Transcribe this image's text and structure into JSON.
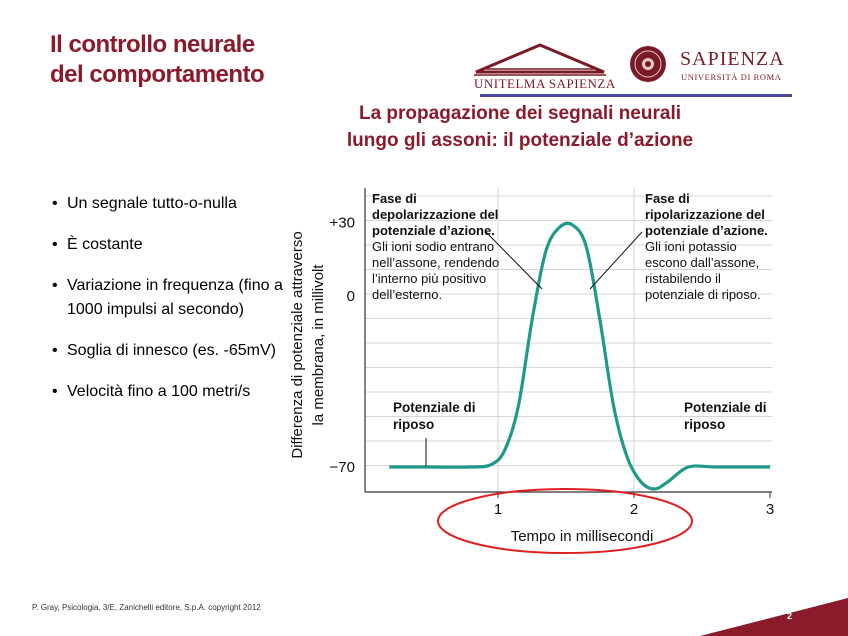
{
  "header": {
    "title_line1": "Il controllo neurale",
    "title_line2": "del comportamento",
    "logo_unitelma": "UNITELMA SAPIENZA",
    "logo_sapienza": "SAPIENZA",
    "logo_sapienza_sub": "UNIVERSITÀ DI ROMA"
  },
  "subtitle": {
    "line1": "La propagazione dei segnali neurali",
    "line2": "lungo gli assoni: il potenziale d’azione"
  },
  "bullets": [
    "Un segnale tutto-o-nulla",
    "È costante",
    "Variazione in frequenza (fino a 1000 impulsi al secondo)",
    "Soglia di innesco (es. -65mV)",
    "Velocità fino a 100 metri/s"
  ],
  "chart_data": {
    "type": "line",
    "ylabel_line1": "Differenza di potenziale attraverso",
    "ylabel_line2": "la membrana, in millivolt",
    "xlabel": "Tempo in millisecondi",
    "yticks": [
      "+30",
      "0",
      "−70"
    ],
    "xticks": [
      "1",
      "2",
      "3"
    ],
    "ylim": [
      -80,
      40
    ],
    "xlim": [
      0,
      3
    ],
    "grid": true,
    "series": [
      {
        "color": "#1e9a8c",
        "x": [
          0.2,
          0.5,
          0.8,
          0.95,
          1.05,
          1.15,
          1.25,
          1.35,
          1.45,
          1.55,
          1.65,
          1.75,
          1.85,
          1.95,
          2.05,
          2.15,
          2.25,
          2.4,
          2.6,
          3.0
        ],
        "y": [
          -70,
          -70,
          -70,
          -69,
          -63,
          -45,
          -10,
          18,
          28,
          29,
          20,
          -10,
          -45,
          -66,
          -76,
          -79,
          -76,
          -70,
          -70,
          -70
        ]
      }
    ],
    "annotations": {
      "depol_bold": "Fase di depolarizzazione del potenziale d’azione.",
      "depol_text": "Gli ioni sodio entrano nell’assone, rendendo l’interno più positivo dell’esterno.",
      "repol_bold": "Fase di ripolarizzazione del potenziale d’azione.",
      "repol_text": "Gli ioni potassio escono dall’assone, ristabilendo il potenziale di riposo.",
      "rest_left": "Potenziale di riposo",
      "rest_right": "Potenziale di riposo"
    }
  },
  "footer": {
    "credit": "P. Gray, Psicologia, 3/E, Zanichelli editore, S.p.A. copyright 2012",
    "page": "2"
  }
}
